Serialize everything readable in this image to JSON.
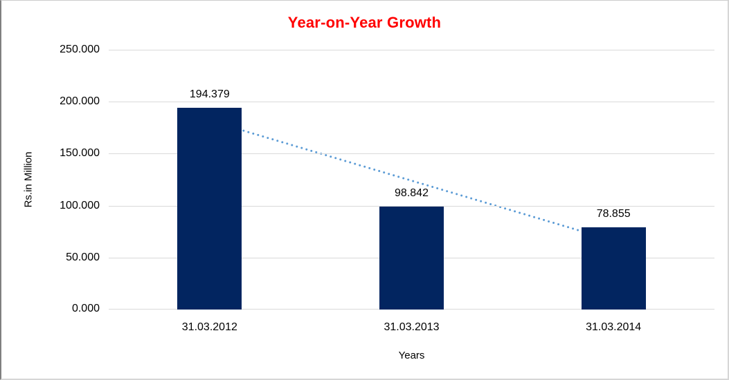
{
  "chart_data": {
    "type": "bar",
    "title": "Year-on-Year Growth",
    "title_color": "#ff0000",
    "xlabel": "Years",
    "ylabel": "Rs.in Million",
    "categories": [
      "31.03.2012",
      "31.03.2013",
      "31.03.2014"
    ],
    "values": [
      194.379,
      98.842,
      78.855
    ],
    "data_labels": [
      "194.379",
      "98.842",
      "78.855"
    ],
    "ylim": [
      0,
      250
    ],
    "ytick_step": 50,
    "ytick_labels": [
      "0.000",
      "50.000",
      "100.000",
      "150.000",
      "200.000",
      "250.000"
    ],
    "grid": true,
    "legend": "none",
    "bar_color": "#022560",
    "gridline_color": "#d9d9d9",
    "text_color": "#000000",
    "trendline": {
      "type": "linear",
      "style": "dotted",
      "color": "#5b9bd5",
      "spans_categories": [
        1,
        3
      ]
    }
  }
}
